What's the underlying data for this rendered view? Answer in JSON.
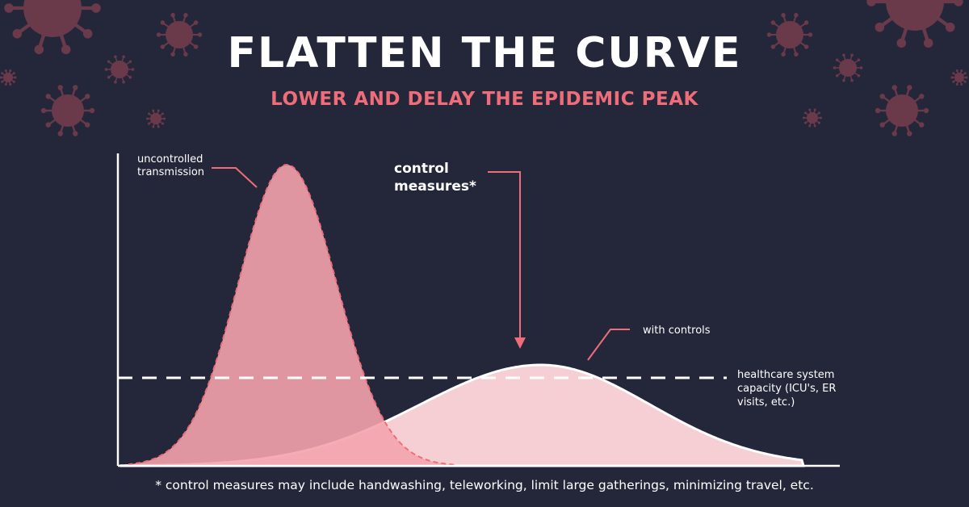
{
  "header": {
    "title": "FLATTEN THE CURVE",
    "subtitle": "LOWER AND DELAY THE EPIDEMIC PEAK"
  },
  "annotations": {
    "uncontrolled": [
      "uncontrolled",
      "transmission"
    ],
    "control_measures": [
      "control",
      "measures*"
    ],
    "with_controls": "with controls",
    "capacity": [
      "healthcare system",
      "capacity (ICU's, ER",
      "visits, etc.)"
    ]
  },
  "footnote": "* control measures may include handwashing, teleworking, limit large gatherings, minimizing travel, etc.",
  "colors": {
    "background": "#24273a",
    "accent": "#ee6d79",
    "uncontrolled_fill": "#f4a3ad",
    "controlled_fill": "#f6cfd5",
    "text": "#ffffff",
    "virus_icon": "#6b3a4a"
  },
  "chart_data": {
    "type": "area",
    "series": [
      {
        "name": "uncontrolled transmission",
        "peak": 1.0,
        "peak_time": 0.24,
        "style": "dashed-outline"
      },
      {
        "name": "with controls",
        "peak": 0.34,
        "peak_time": 0.58,
        "style": "solid-outline"
      }
    ],
    "capacity_line": {
      "label": "healthcare system capacity (ICU's, ER visits, etc.)",
      "level": 0.29,
      "style": "dashed"
    },
    "grid": false
  }
}
